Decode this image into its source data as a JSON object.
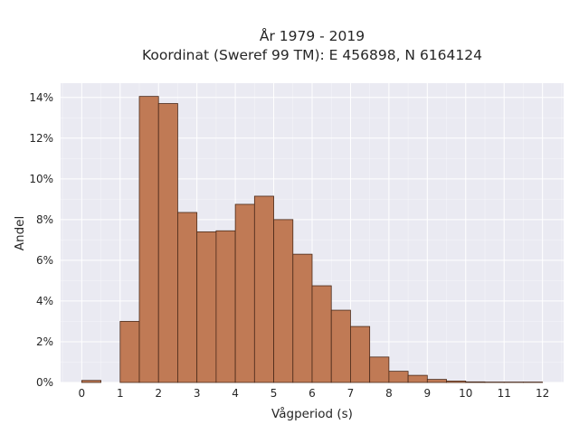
{
  "chart_data": {
    "type": "bar",
    "title_line1": "År 1979 - 2019",
    "title_line2": "Koordinat (Sweref 99 TM): E 456898, N 6164124",
    "xlabel": "Vågperiod (s)",
    "ylabel": "Andel",
    "bin_width": 0.5,
    "bins": [
      {
        "x0": 0.0,
        "value": 0.1
      },
      {
        "x0": 0.5,
        "value": 0.0
      },
      {
        "x0": 1.0,
        "value": 3.0
      },
      {
        "x0": 1.5,
        "value": 14.05
      },
      {
        "x0": 2.0,
        "value": 13.7
      },
      {
        "x0": 2.5,
        "value": 8.35
      },
      {
        "x0": 3.0,
        "value": 7.4
      },
      {
        "x0": 3.5,
        "value": 7.45
      },
      {
        "x0": 4.0,
        "value": 8.75
      },
      {
        "x0": 4.5,
        "value": 9.15
      },
      {
        "x0": 5.0,
        "value": 8.0
      },
      {
        "x0": 5.5,
        "value": 6.3
      },
      {
        "x0": 6.0,
        "value": 4.75
      },
      {
        "x0": 6.5,
        "value": 3.55
      },
      {
        "x0": 7.0,
        "value": 2.75
      },
      {
        "x0": 7.5,
        "value": 1.25
      },
      {
        "x0": 8.0,
        "value": 0.55
      },
      {
        "x0": 8.5,
        "value": 0.35
      },
      {
        "x0": 9.0,
        "value": 0.15
      },
      {
        "x0": 9.5,
        "value": 0.07
      },
      {
        "x0": 10.0,
        "value": 0.03
      },
      {
        "x0": 10.5,
        "value": 0.02
      },
      {
        "x0": 11.0,
        "value": 0.02
      },
      {
        "x0": 11.5,
        "value": 0.02
      }
    ],
    "xlim": [
      -0.55,
      12.55
    ],
    "ylim": [
      0,
      14.7
    ],
    "xticks": [
      0,
      1,
      2,
      3,
      4,
      5,
      6,
      7,
      8,
      9,
      10,
      11,
      12
    ],
    "xtick_labels": [
      "0",
      "1",
      "2",
      "3",
      "4",
      "5",
      "6",
      "7",
      "8",
      "9",
      "10",
      "11",
      "12"
    ],
    "yticks": [
      0,
      2,
      4,
      6,
      8,
      10,
      12,
      14
    ],
    "ytick_labels": [
      "0%",
      "2%",
      "4%",
      "6%",
      "8%",
      "10%",
      "12%",
      "14%"
    ],
    "grid": true,
    "colors": {
      "bar_fill": "#c07a55",
      "bar_edge": "#4a2a1a",
      "plot_bg": "#eaeaf2",
      "grid": "#ffffff"
    }
  }
}
